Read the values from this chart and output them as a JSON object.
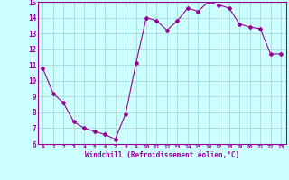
{
  "x": [
    0,
    1,
    2,
    3,
    4,
    5,
    6,
    7,
    8,
    9,
    10,
    11,
    12,
    13,
    14,
    15,
    16,
    17,
    18,
    19,
    20,
    21,
    22,
    23
  ],
  "y": [
    10.8,
    9.2,
    8.6,
    7.4,
    7.0,
    6.8,
    6.6,
    6.3,
    7.9,
    11.1,
    14.0,
    13.8,
    13.2,
    13.8,
    14.6,
    14.4,
    15.0,
    14.8,
    14.6,
    13.6,
    13.4,
    13.3,
    11.7,
    11.7
  ],
  "line_color": "#990099",
  "marker": "D",
  "marker_size": 2,
  "bg_color": "#ccffff",
  "grid_color": "#aacccc",
  "xlabel": "Windchill (Refroidissement éolien,°C)",
  "xlabel_color": "#990099",
  "tick_color": "#990099",
  "ylim": [
    6,
    15
  ],
  "xlim": [
    -0.5,
    23.5
  ],
  "yticks": [
    6,
    7,
    8,
    9,
    10,
    11,
    12,
    13,
    14,
    15
  ],
  "xticks": [
    0,
    1,
    2,
    3,
    4,
    5,
    6,
    7,
    8,
    9,
    10,
    11,
    12,
    13,
    14,
    15,
    16,
    17,
    18,
    19,
    20,
    21,
    22,
    23
  ]
}
